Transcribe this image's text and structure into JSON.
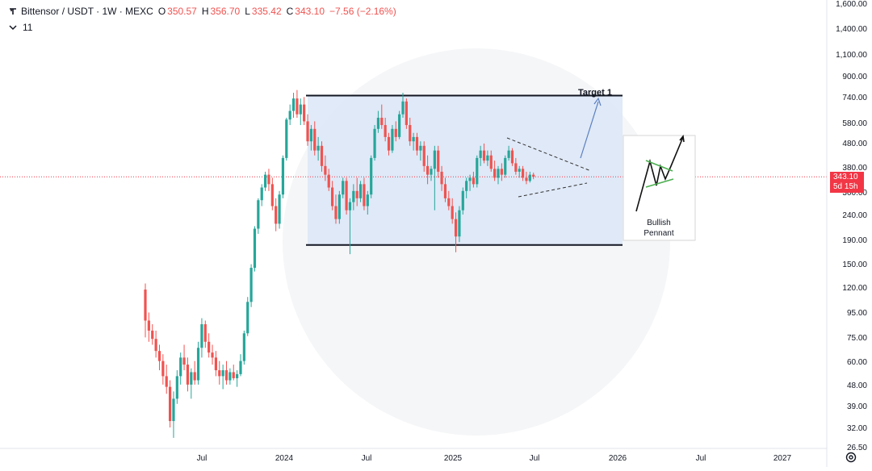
{
  "header": {
    "symbol": "Bittensor / USDT · 1W · MEXC",
    "open_label": "O",
    "open": "350.57",
    "high_label": "H",
    "high": "356.70",
    "low_label": "L",
    "low": "335.42",
    "close_label": "C",
    "close": "343.10",
    "change": "−7.56 (−2.16%)",
    "indicator_count": "11"
  },
  "price_badge": {
    "price": "343.10",
    "countdown": "5d 15h"
  },
  "colors": {
    "up": "#26a69a",
    "down": "#ef5350",
    "range_fill": "#dbe6f7",
    "range_border": "#131722",
    "arrow": "#5b7fbf",
    "price_line": "#f23645",
    "pennant_flag": "#4caf50"
  },
  "annotations": {
    "target_label": "Target 1",
    "pennant_title": "Bullish",
    "pennant_subtitle": "Pennant"
  },
  "chart_data": {
    "type": "candlestick",
    "scale": "log",
    "interval": "1W",
    "y_ticks": [
      "1,600.00",
      "1,400.00",
      "1,100.00",
      "900.00",
      "740.00",
      "580.00",
      "480.00",
      "380.00",
      "300.00",
      "240.00",
      "190.00",
      "150.00",
      "120.00",
      "95.00",
      "75.00",
      "60.00",
      "48.00",
      "39.00",
      "32.00",
      "26.50"
    ],
    "x_ticks": [
      "Jul",
      "2024",
      "Jul",
      "2025",
      "Jul",
      "2026",
      "Jul",
      "2027"
    ],
    "range_box": {
      "top": 740,
      "bottom": 180
    },
    "last_price": 343.1,
    "candles": [
      {
        "o": 118,
        "h": 125,
        "l": 75,
        "c": 88
      },
      {
        "o": 88,
        "h": 95,
        "l": 72,
        "c": 80
      },
      {
        "o": 80,
        "h": 85,
        "l": 70,
        "c": 74
      },
      {
        "o": 74,
        "h": 80,
        "l": 62,
        "c": 66
      },
      {
        "o": 66,
        "h": 70,
        "l": 55,
        "c": 60
      },
      {
        "o": 60,
        "h": 64,
        "l": 48,
        "c": 52
      },
      {
        "o": 52,
        "h": 58,
        "l": 44,
        "c": 47
      },
      {
        "o": 47,
        "h": 50,
        "l": 32,
        "c": 34
      },
      {
        "o": 34,
        "h": 45,
        "l": 29,
        "c": 42
      },
      {
        "o": 42,
        "h": 55,
        "l": 40,
        "c": 52
      },
      {
        "o": 52,
        "h": 65,
        "l": 48,
        "c": 62
      },
      {
        "o": 62,
        "h": 70,
        "l": 55,
        "c": 58
      },
      {
        "o": 58,
        "h": 62,
        "l": 45,
        "c": 48
      },
      {
        "o": 48,
        "h": 56,
        "l": 42,
        "c": 54
      },
      {
        "o": 54,
        "h": 60,
        "l": 48,
        "c": 50
      },
      {
        "o": 50,
        "h": 72,
        "l": 48,
        "c": 68
      },
      {
        "o": 68,
        "h": 90,
        "l": 62,
        "c": 85
      },
      {
        "o": 85,
        "h": 88,
        "l": 68,
        "c": 72
      },
      {
        "o": 72,
        "h": 78,
        "l": 62,
        "c": 65
      },
      {
        "o": 65,
        "h": 70,
        "l": 58,
        "c": 62
      },
      {
        "o": 62,
        "h": 66,
        "l": 52,
        "c": 55
      },
      {
        "o": 55,
        "h": 60,
        "l": 48,
        "c": 52
      },
      {
        "o": 52,
        "h": 58,
        "l": 46,
        "c": 55
      },
      {
        "o": 55,
        "h": 60,
        "l": 48,
        "c": 50
      },
      {
        "o": 50,
        "h": 56,
        "l": 48,
        "c": 54
      },
      {
        "o": 54,
        "h": 58,
        "l": 50,
        "c": 51
      },
      {
        "o": 51,
        "h": 55,
        "l": 47,
        "c": 53
      },
      {
        "o": 53,
        "h": 64,
        "l": 52,
        "c": 60
      },
      {
        "o": 60,
        "h": 80,
        "l": 58,
        "c": 78
      },
      {
        "o": 78,
        "h": 110,
        "l": 76,
        "c": 105
      },
      {
        "o": 105,
        "h": 150,
        "l": 100,
        "c": 145
      },
      {
        "o": 145,
        "h": 215,
        "l": 140,
        "c": 210
      },
      {
        "o": 210,
        "h": 280,
        "l": 200,
        "c": 275
      },
      {
        "o": 275,
        "h": 320,
        "l": 260,
        "c": 310
      },
      {
        "o": 310,
        "h": 360,
        "l": 300,
        "c": 350
      },
      {
        "o": 350,
        "h": 370,
        "l": 300,
        "c": 320
      },
      {
        "o": 320,
        "h": 340,
        "l": 250,
        "c": 260
      },
      {
        "o": 260,
        "h": 280,
        "l": 205,
        "c": 220
      },
      {
        "o": 220,
        "h": 300,
        "l": 210,
        "c": 290
      },
      {
        "o": 290,
        "h": 420,
        "l": 280,
        "c": 410
      },
      {
        "o": 410,
        "h": 600,
        "l": 400,
        "c": 590
      },
      {
        "o": 590,
        "h": 680,
        "l": 560,
        "c": 640
      },
      {
        "o": 640,
        "h": 760,
        "l": 600,
        "c": 720
      },
      {
        "o": 720,
        "h": 780,
        "l": 600,
        "c": 620
      },
      {
        "o": 620,
        "h": 720,
        "l": 560,
        "c": 680
      },
      {
        "o": 680,
        "h": 730,
        "l": 560,
        "c": 580
      },
      {
        "o": 580,
        "h": 620,
        "l": 460,
        "c": 480
      },
      {
        "o": 480,
        "h": 560,
        "l": 440,
        "c": 540
      },
      {
        "o": 540,
        "h": 580,
        "l": 420,
        "c": 440
      },
      {
        "o": 440,
        "h": 500,
        "l": 400,
        "c": 460
      },
      {
        "o": 460,
        "h": 480,
        "l": 360,
        "c": 380
      },
      {
        "o": 380,
        "h": 420,
        "l": 330,
        "c": 350
      },
      {
        "o": 350,
        "h": 370,
        "l": 300,
        "c": 310
      },
      {
        "o": 310,
        "h": 330,
        "l": 250,
        "c": 260
      },
      {
        "o": 260,
        "h": 290,
        "l": 220,
        "c": 230
      },
      {
        "o": 230,
        "h": 300,
        "l": 220,
        "c": 290
      },
      {
        "o": 290,
        "h": 340,
        "l": 280,
        "c": 330
      },
      {
        "o": 330,
        "h": 340,
        "l": 240,
        "c": 250
      },
      {
        "o": 250,
        "h": 280,
        "l": 165,
        "c": 270
      },
      {
        "o": 270,
        "h": 320,
        "l": 250,
        "c": 300
      },
      {
        "o": 300,
        "h": 340,
        "l": 260,
        "c": 280
      },
      {
        "o": 280,
        "h": 330,
        "l": 270,
        "c": 320
      },
      {
        "o": 320,
        "h": 340,
        "l": 250,
        "c": 260
      },
      {
        "o": 260,
        "h": 300,
        "l": 240,
        "c": 290
      },
      {
        "o": 290,
        "h": 420,
        "l": 280,
        "c": 410
      },
      {
        "o": 410,
        "h": 560,
        "l": 400,
        "c": 540
      },
      {
        "o": 540,
        "h": 640,
        "l": 520,
        "c": 600
      },
      {
        "o": 600,
        "h": 680,
        "l": 540,
        "c": 560
      },
      {
        "o": 560,
        "h": 600,
        "l": 480,
        "c": 500
      },
      {
        "o": 500,
        "h": 520,
        "l": 420,
        "c": 440
      },
      {
        "o": 440,
        "h": 560,
        "l": 430,
        "c": 540
      },
      {
        "o": 540,
        "h": 580,
        "l": 480,
        "c": 500
      },
      {
        "o": 500,
        "h": 640,
        "l": 490,
        "c": 620
      },
      {
        "o": 620,
        "h": 760,
        "l": 600,
        "c": 700
      },
      {
        "o": 700,
        "h": 720,
        "l": 540,
        "c": 560
      },
      {
        "o": 560,
        "h": 600,
        "l": 460,
        "c": 480
      },
      {
        "o": 480,
        "h": 520,
        "l": 440,
        "c": 500
      },
      {
        "o": 500,
        "h": 520,
        "l": 420,
        "c": 440
      },
      {
        "o": 440,
        "h": 480,
        "l": 400,
        "c": 460
      },
      {
        "o": 460,
        "h": 480,
        "l": 360,
        "c": 380
      },
      {
        "o": 380,
        "h": 420,
        "l": 320,
        "c": 350
      },
      {
        "o": 350,
        "h": 380,
        "l": 330,
        "c": 370
      },
      {
        "o": 370,
        "h": 460,
        "l": 250,
        "c": 440
      },
      {
        "o": 440,
        "h": 460,
        "l": 340,
        "c": 360
      },
      {
        "o": 360,
        "h": 380,
        "l": 300,
        "c": 320
      },
      {
        "o": 320,
        "h": 340,
        "l": 270,
        "c": 280
      },
      {
        "o": 280,
        "h": 300,
        "l": 250,
        "c": 260
      },
      {
        "o": 260,
        "h": 280,
        "l": 220,
        "c": 230
      },
      {
        "o": 230,
        "h": 245,
        "l": 168,
        "c": 195
      },
      {
        "o": 195,
        "h": 260,
        "l": 185,
        "c": 250
      },
      {
        "o": 250,
        "h": 310,
        "l": 240,
        "c": 300
      },
      {
        "o": 300,
        "h": 340,
        "l": 280,
        "c": 330
      },
      {
        "o": 330,
        "h": 350,
        "l": 300,
        "c": 340
      },
      {
        "o": 340,
        "h": 360,
        "l": 310,
        "c": 320
      },
      {
        "o": 320,
        "h": 420,
        "l": 310,
        "c": 410
      },
      {
        "o": 410,
        "h": 460,
        "l": 380,
        "c": 440
      },
      {
        "o": 440,
        "h": 470,
        "l": 390,
        "c": 400
      },
      {
        "o": 400,
        "h": 440,
        "l": 380,
        "c": 420
      },
      {
        "o": 420,
        "h": 440,
        "l": 360,
        "c": 370
      },
      {
        "o": 370,
        "h": 400,
        "l": 330,
        "c": 340
      },
      {
        "o": 340,
        "h": 380,
        "l": 320,
        "c": 370
      },
      {
        "o": 370,
        "h": 390,
        "l": 330,
        "c": 350
      },
      {
        "o": 350,
        "h": 420,
        "l": 340,
        "c": 410
      },
      {
        "o": 410,
        "h": 460,
        "l": 400,
        "c": 440
      },
      {
        "o": 440,
        "h": 450,
        "l": 380,
        "c": 390
      },
      {
        "o": 390,
        "h": 410,
        "l": 350,
        "c": 360
      },
      {
        "o": 360,
        "h": 380,
        "l": 340,
        "c": 370
      },
      {
        "o": 370,
        "h": 380,
        "l": 330,
        "c": 340
      },
      {
        "o": 340,
        "h": 360,
        "l": 320,
        "c": 330
      },
      {
        "o": 330,
        "h": 360,
        "l": 325,
        "c": 350
      },
      {
        "o": 350,
        "h": 356.7,
        "l": 335.42,
        "c": 343.1
      }
    ]
  }
}
